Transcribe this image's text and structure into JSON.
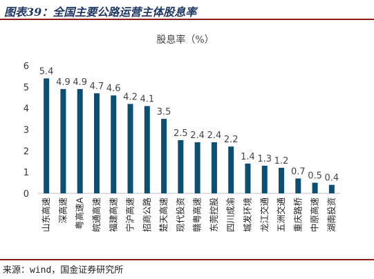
{
  "figure_title": "图表39：全国主要公路运营主体股息率",
  "source_note": "来源：wind，国金证券研究所",
  "colors": {
    "bar": "#0d4f73",
    "title": "#1f3864",
    "rule": "#8b1a1a"
  },
  "chart_data": {
    "type": "bar",
    "title": "",
    "ylabel": "股息率（%）",
    "xlabel": "",
    "ylim": [
      0,
      6
    ],
    "yticks": [
      0,
      1,
      2,
      3,
      4,
      5,
      6
    ],
    "grid": false,
    "categories": [
      "山东高速",
      "深高速",
      "粤高速A",
      "皖通高速",
      "福建高速",
      "宁沪高速",
      "招商公路",
      "楚天高速",
      "现代投资",
      "赣粤高速",
      "东莞控股",
      "四川成渝",
      "城发环境",
      "龙江交通",
      "五洲交通",
      "重庆路桥",
      "中原高速",
      "湖南投资"
    ],
    "values": [
      5.4,
      4.9,
      4.9,
      4.7,
      4.6,
      4.2,
      4.1,
      3.5,
      2.5,
      2.4,
      2.4,
      2.2,
      1.4,
      1.3,
      1.2,
      0.7,
      0.5,
      0.4
    ],
    "value_labels": [
      "5.4",
      "4.9",
      "4.9",
      "4.7",
      "4.6",
      "4.2",
      "4.1",
      "3.5",
      "2.5",
      "2.4",
      "2.4",
      "2.2",
      "1.4",
      "1.3",
      "1.2",
      "0.7",
      "0.5",
      "0.4"
    ]
  }
}
